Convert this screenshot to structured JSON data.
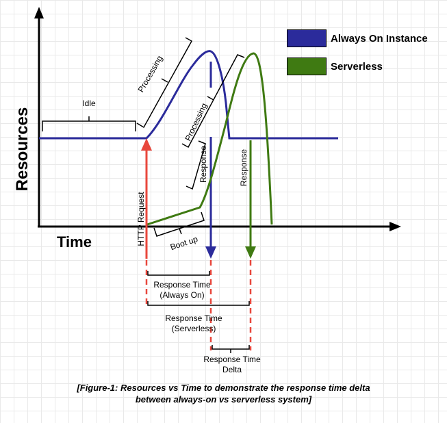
{
  "colors": {
    "always_on": "#2b2b9b",
    "serverless": "#3f7a12",
    "request": "#e8473c"
  },
  "axes": {
    "y_label": "Resources",
    "x_label": "Time"
  },
  "legend": {
    "always_on": "Always On Instance",
    "serverless": "Serverless"
  },
  "annotations": {
    "idle": "Idle",
    "processing_always_on": "Processing",
    "processing_serverless": "Processing",
    "response_always_on": "Response",
    "response_serverless": "Response",
    "http_request": "HTTP Request",
    "boot_up": "Boot up"
  },
  "measurements": {
    "response_time_always_on_line1": "Response Time",
    "response_time_always_on_line2": "(Always On)",
    "response_time_serverless_line1": "Response Time",
    "response_time_serverless_line2": "(Serverless)",
    "response_time_delta_line1": "Response Time",
    "response_time_delta_line2": "Delta"
  },
  "caption": {
    "line1": "[Figure-1: Resources vs Time to demonstrate the response time delta",
    "line2": "between always-on vs serverless system]"
  }
}
